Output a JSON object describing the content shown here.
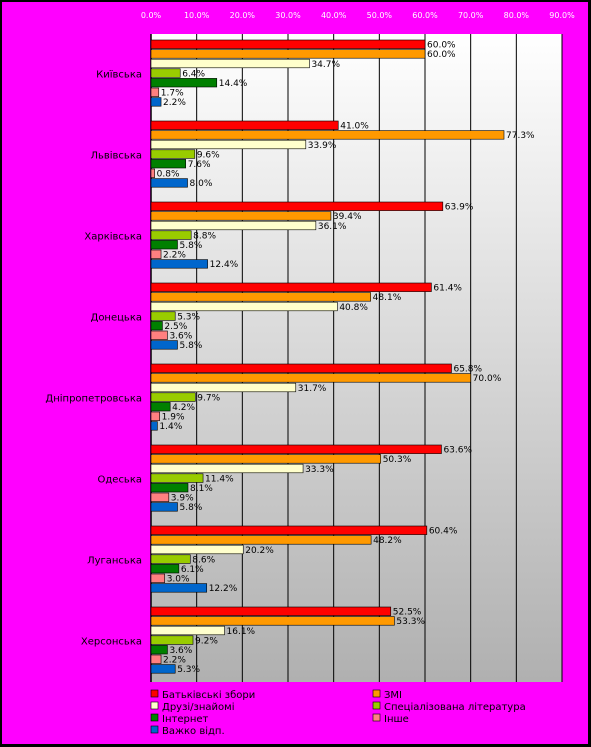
{
  "chart_data": {
    "type": "bar",
    "orientation": "horizontal",
    "xlim": [
      0,
      90
    ],
    "x_ticks": [
      "0.0%",
      "10.0%",
      "20.0%",
      "30.0%",
      "40.0%",
      "50.0%",
      "60.0%",
      "70.0%",
      "80.0%",
      "90.0%"
    ],
    "grid": true,
    "legend_position": "bottom",
    "categories": [
      "Київська",
      "Львівська",
      "Харківська",
      "Донецька",
      "Дніпропетровська",
      "Одеська",
      "Луганська",
      "Херсонська"
    ],
    "series": [
      {
        "name": "Батьківські збори",
        "color": "#ff0000",
        "values": [
          60.0,
          41.0,
          63.9,
          61.4,
          65.8,
          63.6,
          60.4,
          52.5
        ],
        "labels": [
          "60.0%",
          "41.0%",
          "63.9%",
          "61.4%",
          "65.8%",
          "63.6%",
          "60.4%",
          "52.5%"
        ]
      },
      {
        "name": "ЗМІ",
        "color": "#ff9900",
        "values": [
          60.0,
          77.3,
          39.4,
          48.1,
          70.0,
          50.3,
          48.2,
          53.3
        ],
        "labels": [
          "60.0%",
          "77.3%",
          "39.4%",
          "48.1%",
          "70.0%",
          "50.3%",
          "48.2%",
          "53.3%"
        ]
      },
      {
        "name": "Друзі/знайомі",
        "color": "#ffffcc",
        "values": [
          34.7,
          33.9,
          36.1,
          40.8,
          31.7,
          33.3,
          20.2,
          16.1
        ],
        "labels": [
          "34.7%",
          "33.9%",
          "36.1%",
          "40.8%",
          "31.7%",
          "33.3%",
          "20.2%",
          "16.1%"
        ]
      },
      {
        "name": "Спеціалізована література",
        "color": "#99cc00",
        "values": [
          6.4,
          9.6,
          8.8,
          5.3,
          9.7,
          11.4,
          8.6,
          9.2
        ],
        "labels": [
          "6.4%",
          "9.6%",
          "8.8%",
          "5.3%",
          "9.7%",
          "11.4%",
          "8.6%",
          "9.2%"
        ]
      },
      {
        "name": "Інтернет",
        "color": "#008000",
        "values": [
          14.4,
          7.6,
          5.8,
          2.5,
          4.2,
          8.1,
          6.1,
          3.6
        ],
        "labels": [
          "14.4%",
          "7.6%",
          "5.8%",
          "2.5%",
          "4.2%",
          "8.1%",
          "6.1%",
          "3.6%"
        ]
      },
      {
        "name": "Інше",
        "color": "#ff8080",
        "values": [
          1.7,
          0.8,
          2.2,
          3.6,
          1.9,
          3.9,
          3.0,
          2.2
        ],
        "labels": [
          "1.7%",
          "0.8%",
          "2.2%",
          "3.6%",
          "1.9%",
          "3.9%",
          "3.0%",
          "2.2%"
        ]
      },
      {
        "name": "Важко відп.",
        "color": "#0066cc",
        "values": [
          2.2,
          8.0,
          12.4,
          5.8,
          1.4,
          5.8,
          12.2,
          5.3
        ],
        "labels": [
          "2.2%",
          "8.0%",
          "12.4%",
          "5.8%",
          "1.4%",
          "5.8%",
          "12.2%",
          "5.3%"
        ]
      }
    ]
  },
  "colors": {
    "frame": "#ff00ff",
    "outer_background": "#000000",
    "plot_gradient_top": "#ffffff",
    "plot_gradient_bottom": "#b0b0b0",
    "gridline": "#000000"
  }
}
